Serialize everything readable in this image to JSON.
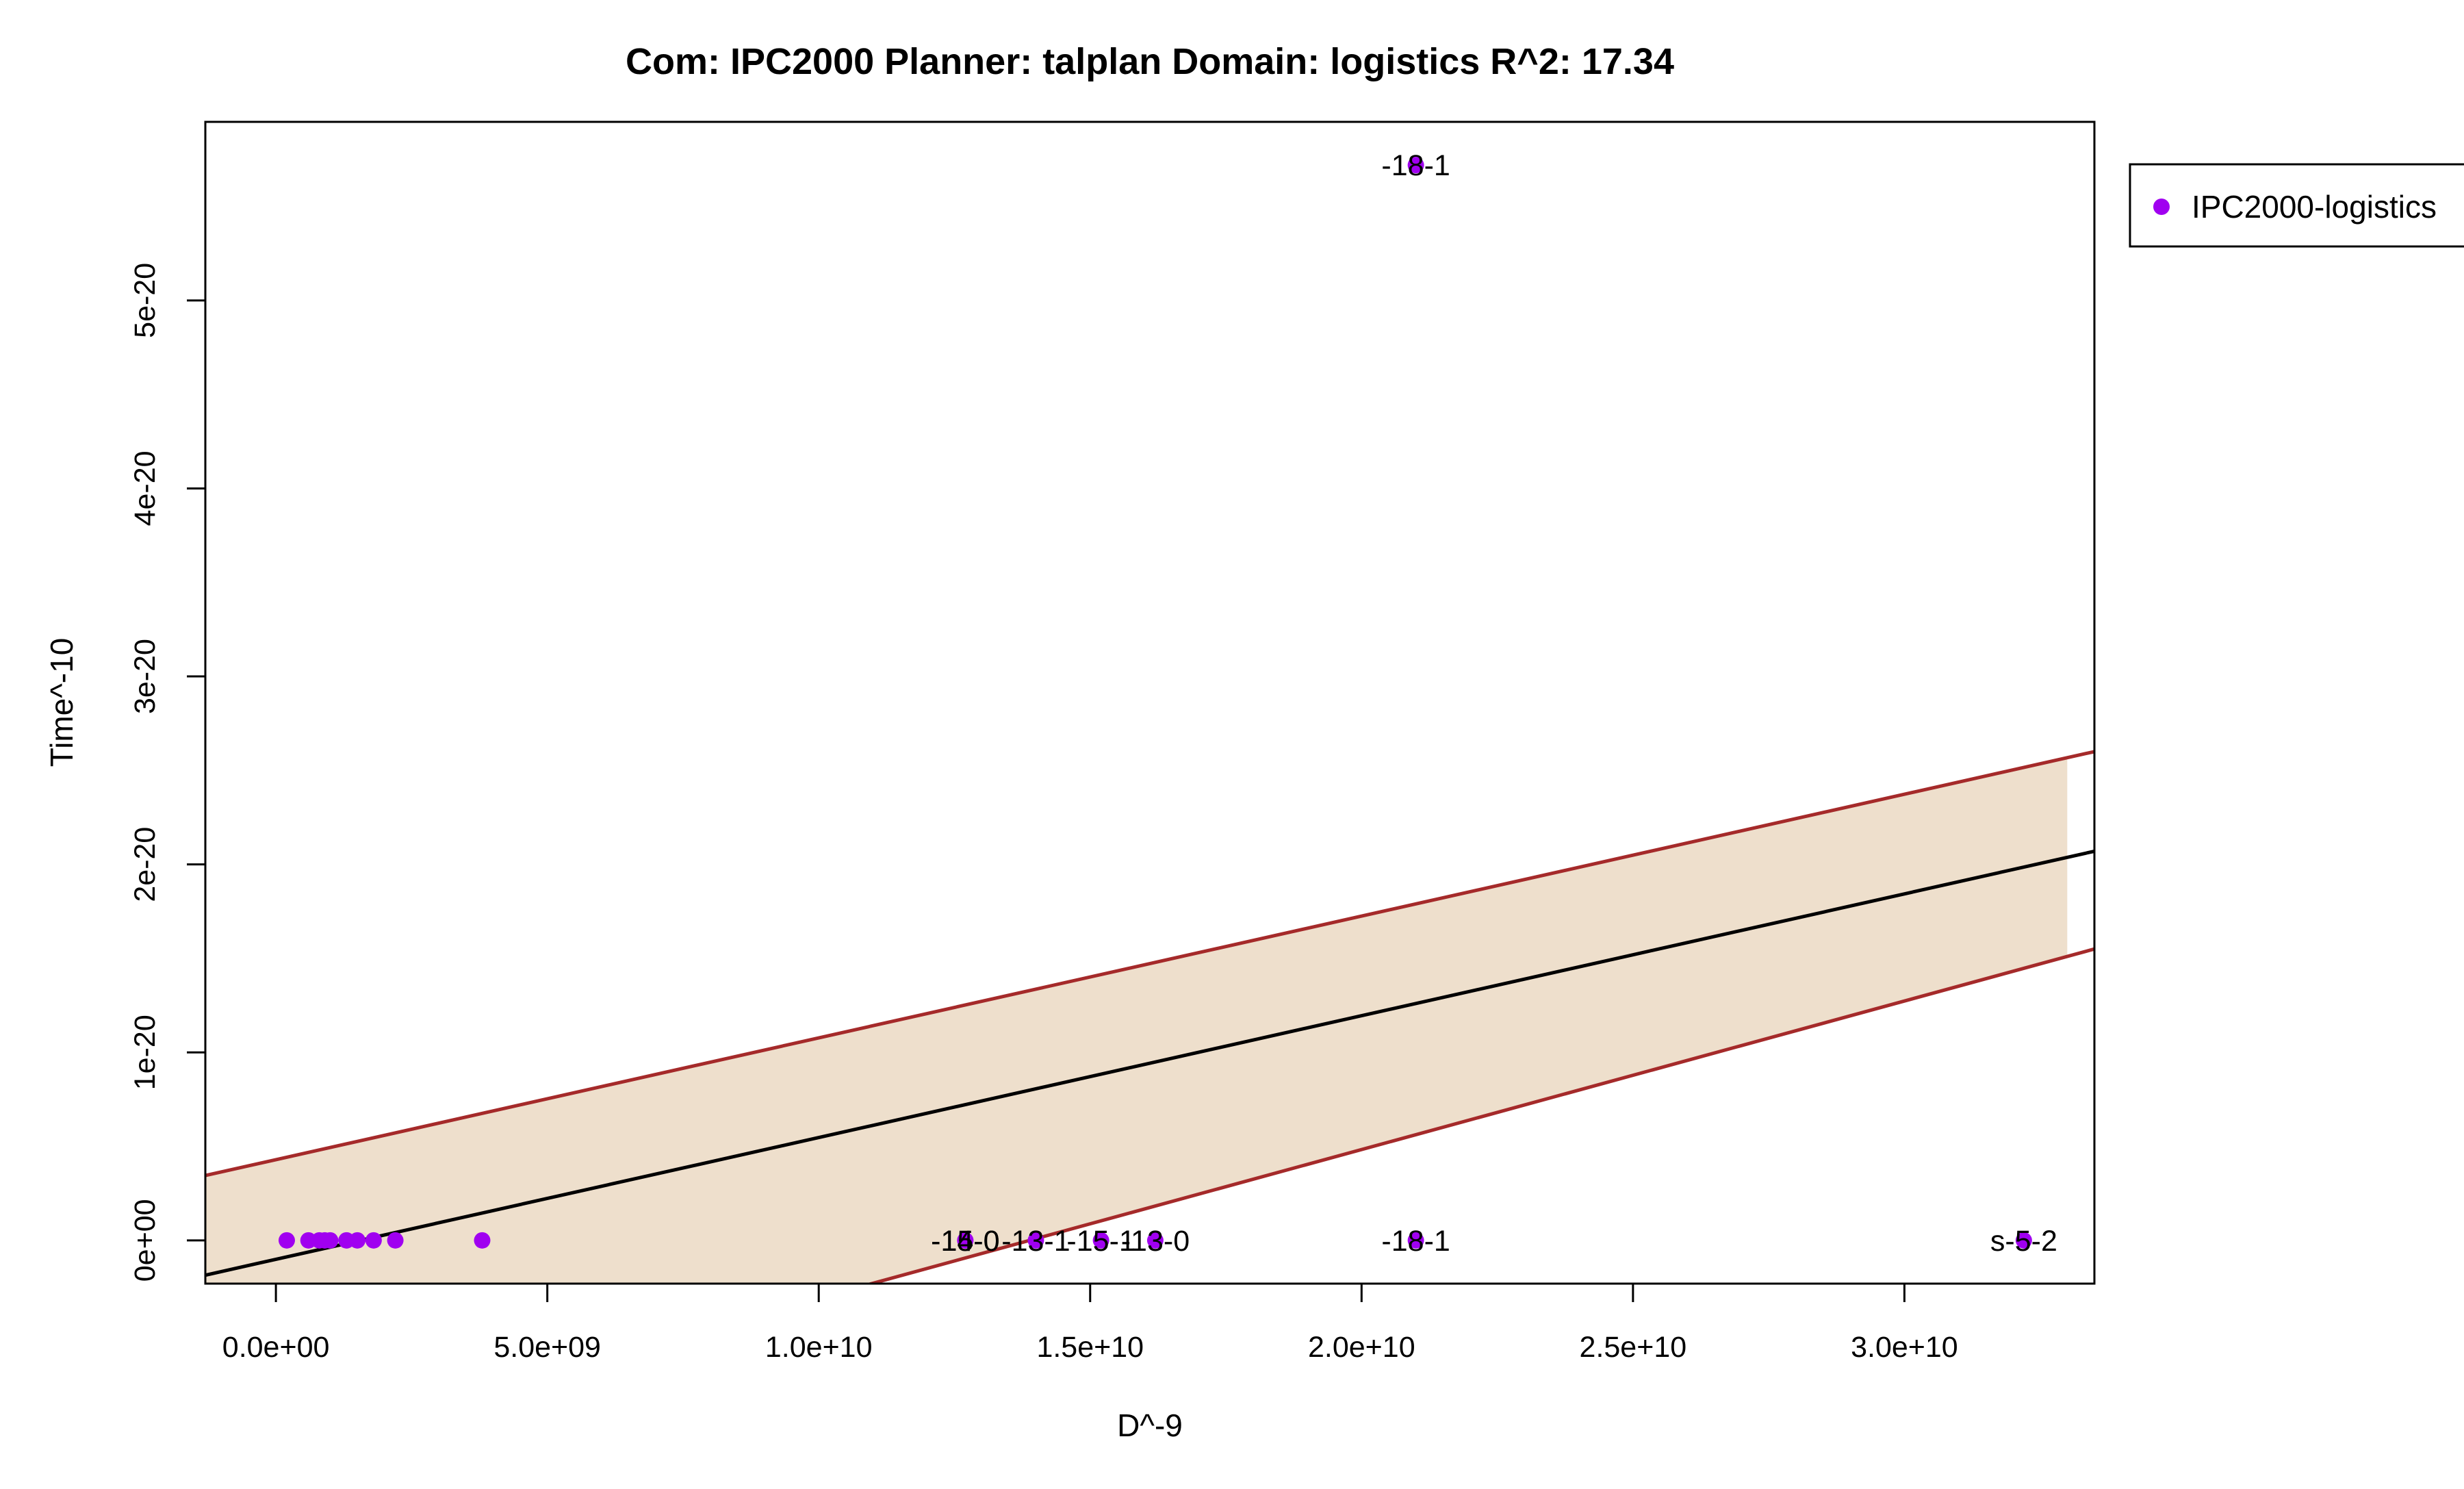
{
  "chart_data": {
    "type": "scatter",
    "title": "Com: IPC2000 Planner: talplan Domain: logistics R^2: 17.34",
    "xlabel": "D^-9",
    "ylabel": "Time^-10",
    "xlim": [
      -1300000000.0,
      33500000000.0
    ],
    "ylim": [
      -2.3e-21,
      5.95e-20
    ],
    "x_ticks": [
      0,
      5000000000.0,
      10000000000.0,
      15000000000.0,
      20000000000.0,
      25000000000.0,
      30000000000.0
    ],
    "x_tick_labels": [
      "0.0e+00",
      "5.0e+09",
      "1.0e+10",
      "1.5e+10",
      "2.0e+10",
      "2.5e+10",
      "3.0e+10"
    ],
    "y_ticks": [
      0,
      1e-20,
      2e-20,
      3e-20,
      4e-20,
      5e-20
    ],
    "y_tick_labels": [
      "0e+00",
      "1e-20",
      "2e-20",
      "3e-20",
      "4e-20",
      "5e-20"
    ],
    "grid": false,
    "colors": {
      "points": "#a000f0",
      "fit_line": "#000000",
      "bound_lines": "#a52a2a",
      "band": "#eedfcc",
      "frame": "#000000"
    },
    "legend": {
      "position": "outside-top-right",
      "entries": [
        {
          "label": "IPC2000-logistics",
          "color": "#a000f0",
          "marker": "filled-circle"
        }
      ]
    },
    "fit": {
      "line": [
        [
          -1300000000.0,
          -1.85e-21
        ],
        [
          33500000000.0,
          2.07e-20
        ]
      ],
      "upper": [
        [
          -1300000000.0,
          3.45e-21
        ],
        [
          33500000000.0,
          2.6e-20
        ]
      ],
      "lower": [
        [
          -1300000000.0,
          -1.2e-20
        ],
        [
          33500000000.0,
          1.55e-20
        ]
      ],
      "band_x_end": 33000000000.0
    },
    "series": [
      {
        "name": "IPC2000-logistics",
        "points": [
          {
            "x": 200000000.0,
            "y": 0
          },
          {
            "x": 600000000.0,
            "y": 0
          },
          {
            "x": 800000000.0,
            "y": 0
          },
          {
            "x": 900000000.0,
            "y": 0
          },
          {
            "x": 1000000000.0,
            "y": 0
          },
          {
            "x": 1300000000.0,
            "y": 0
          },
          {
            "x": 1500000000.0,
            "y": 0
          },
          {
            "x": 1800000000.0,
            "y": 0
          },
          {
            "x": 2200000000.0,
            "y": 0
          },
          {
            "x": 3800000000.0,
            "y": 0
          },
          {
            "x": 12700000000.0,
            "y": 0,
            "label": "-14-0"
          },
          {
            "x": 12700000000.0,
            "y": 0,
            "label": "-15-0"
          },
          {
            "x": 14000000000.0,
            "y": 0,
            "label": "-13-1"
          },
          {
            "x": 15200000000.0,
            "y": 0,
            "label": "-15-1"
          },
          {
            "x": 16200000000.0,
            "y": 0,
            "label": "-13-0"
          },
          {
            "x": 21000000000.0,
            "y": 0,
            "label": "-18-1"
          },
          {
            "x": 21000000000.0,
            "y": 5.72e-20,
            "label": "-18-1"
          },
          {
            "x": 32200000000.0,
            "y": 0,
            "label": "s-5-2"
          }
        ]
      }
    ]
  }
}
